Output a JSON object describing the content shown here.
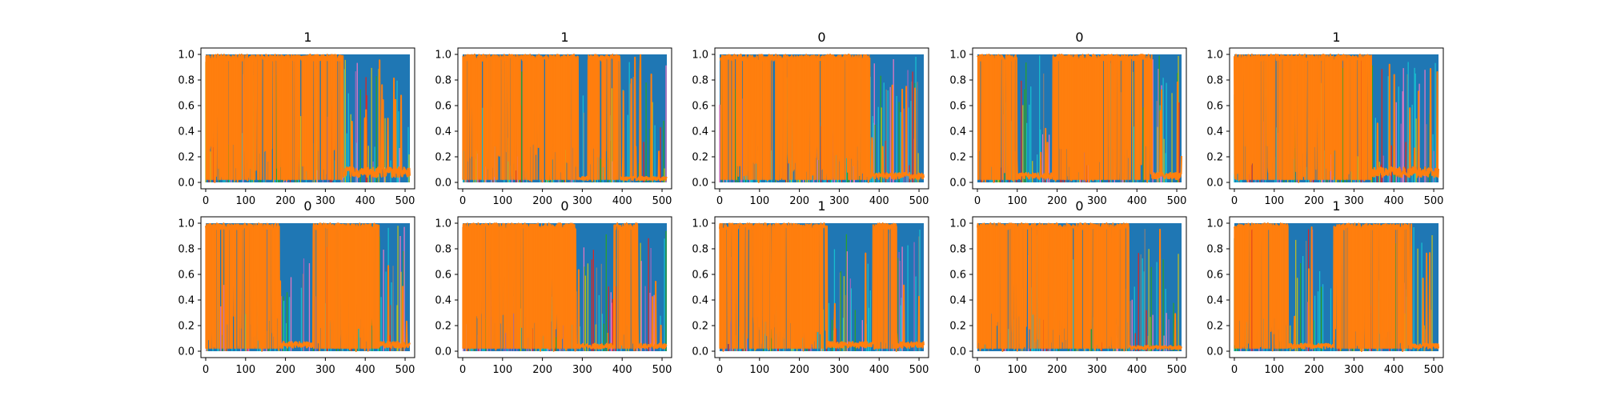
{
  "chart_data": {
    "type": "line",
    "layout": {
      "rows": 2,
      "cols": 5
    },
    "colors": {
      "blue": "#1f77b4",
      "orange": "#ff7f0e",
      "cyan": "#17becf",
      "olive": "#bcbd22",
      "green": "#2ca02c",
      "red": "#d62728",
      "purple": "#9467bd",
      "pink": "#e377c2",
      "grey": "#7f7f7f"
    },
    "x_ticks": [
      "0",
      "100",
      "200",
      "300",
      "400",
      "500"
    ],
    "y_ticks": [
      "0.0",
      "0.2",
      "0.4",
      "0.6",
      "0.8",
      "1.0"
    ],
    "xlim": [
      -12,
      524
    ],
    "ylim": [
      -0.05,
      1.05
    ],
    "grid": false,
    "legend": "none",
    "panels": [
      {
        "title": "1",
        "orange_dominant": [
          [
            0,
            345
          ]
        ],
        "blue_dominant": [
          [
            345,
            512
          ]
        ],
        "orange_tail": 0.08
      },
      {
        "title": "1",
        "orange_dominant": [
          [
            0,
            290
          ],
          [
            315,
            395
          ]
        ],
        "blue_dominant": [
          [
            290,
            315
          ],
          [
            395,
            512
          ]
        ],
        "orange_tail": 0.03
      },
      {
        "title": "0",
        "orange_dominant": [
          [
            0,
            378
          ]
        ],
        "blue_dominant": [
          [
            378,
            512
          ]
        ],
        "orange_tail": 0.05
      },
      {
        "title": "0",
        "orange_dominant": [
          [
            0,
            100
          ],
          [
            190,
            435
          ]
        ],
        "blue_dominant": [
          [
            100,
            190
          ],
          [
            435,
            512
          ]
        ],
        "orange_tail": 0.05
      },
      {
        "title": "1",
        "orange_dominant": [
          [
            0,
            345
          ]
        ],
        "blue_dominant": [
          [
            345,
            512
          ]
        ],
        "orange_tail": 0.08
      },
      {
        "title": "0",
        "orange_dominant": [
          [
            0,
            185
          ],
          [
            270,
            435
          ]
        ],
        "blue_dominant": [
          [
            185,
            270
          ],
          [
            435,
            512
          ]
        ],
        "orange_tail": 0.05
      },
      {
        "title": "0",
        "orange_dominant": [
          [
            0,
            285
          ],
          [
            380,
            440
          ]
        ],
        "blue_dominant": [
          [
            285,
            380
          ],
          [
            440,
            512
          ]
        ],
        "orange_tail": 0.04
      },
      {
        "title": "1",
        "orange_dominant": [
          [
            0,
            270
          ],
          [
            385,
            445
          ]
        ],
        "blue_dominant": [
          [
            270,
            385
          ],
          [
            445,
            512
          ]
        ],
        "orange_tail": 0.05
      },
      {
        "title": "0",
        "orange_dominant": [
          [
            0,
            380
          ]
        ],
        "blue_dominant": [
          [
            380,
            512
          ]
        ],
        "orange_tail": 0.03
      },
      {
        "title": "1",
        "orange_dominant": [
          [
            0,
            135
          ],
          [
            250,
            440
          ]
        ],
        "blue_dominant": [
          [
            135,
            250
          ],
          [
            440,
            512
          ]
        ],
        "orange_tail": 0.04
      }
    ]
  }
}
